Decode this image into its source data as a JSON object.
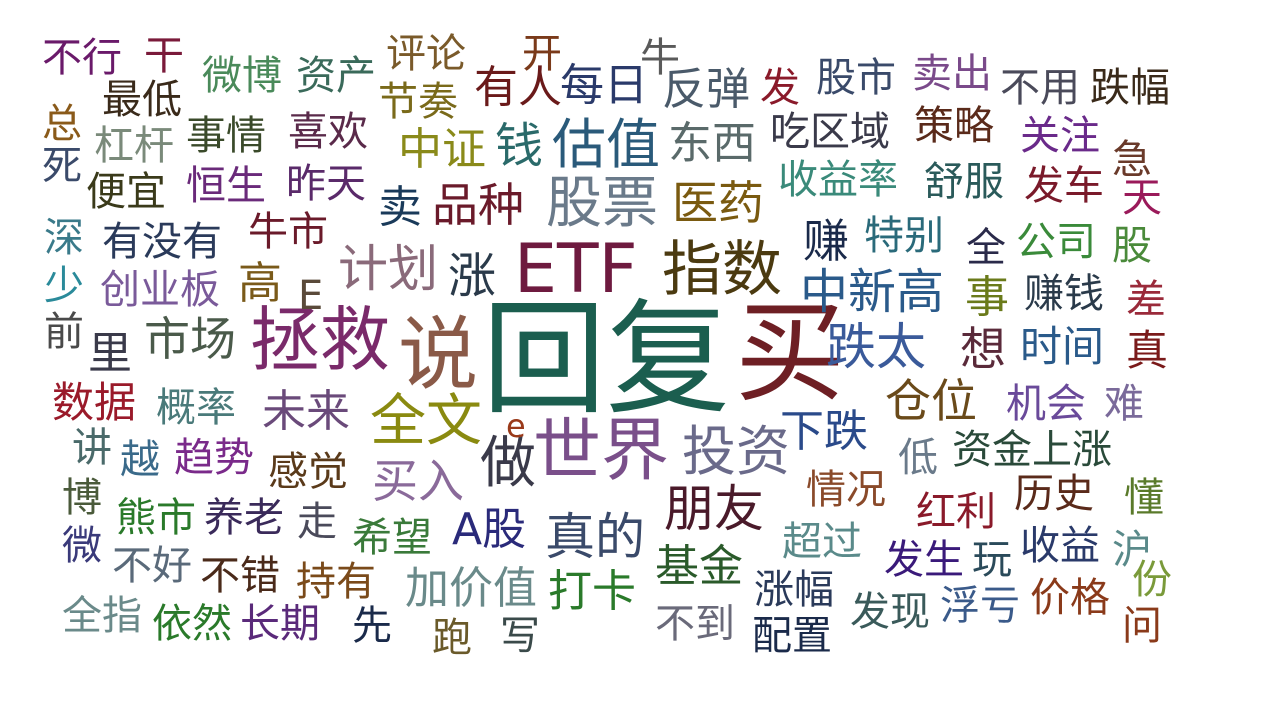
{
  "words": [
    {
      "text": "回复",
      "color": "#1b5e4f"
    },
    {
      "text": "买",
      "color": "#6e1f24"
    },
    {
      "text": "ETF",
      "color": "#6e1a3f"
    },
    {
      "text": "世界",
      "color": "#7a4f8a"
    },
    {
      "text": "说",
      "color": "#8a5a48"
    },
    {
      "text": "拯救",
      "color": "#7a2a6a"
    },
    {
      "text": "指数",
      "color": "#4b3a10"
    },
    {
      "text": "股票",
      "color": "#6a7a8a"
    },
    {
      "text": "投资",
      "color": "#6a6a8a"
    },
    {
      "text": "全文",
      "color": "#8a8a10"
    },
    {
      "text": "做",
      "color": "#3a3a4a"
    },
    {
      "text": "估值",
      "color": "#2a5a7a"
    },
    {
      "text": "计划",
      "color": "#8a6a7a"
    },
    {
      "text": "跌太",
      "color": "#3a5a9a"
    },
    {
      "text": "真的",
      "color": "#3a4a6a"
    },
    {
      "text": "朋友",
      "color": "#4a1a2a"
    },
    {
      "text": "中新高",
      "color": "#2a5a8a"
    },
    {
      "text": "品种",
      "color": "#6a1a2a"
    },
    {
      "text": "医药",
      "color": "#7a5a10"
    },
    {
      "text": "仓位",
      "color": "#6a4a1a"
    },
    {
      "text": "涨",
      "color": "#2a3a4a"
    },
    {
      "text": "市场",
      "color": "#4a5a4a"
    },
    {
      "text": "买入",
      "color": "#8a6a9a"
    },
    {
      "text": "下跌",
      "color": "#2a4a8a"
    },
    {
      "text": "A股",
      "color": "#2a2a7a"
    },
    {
      "text": "打卡",
      "color": "#2a7a2a"
    },
    {
      "text": "加价值",
      "color": "#6a8a8a"
    },
    {
      "text": "未来",
      "color": "#6a4a7a"
    },
    {
      "text": "时间",
      "color": "#2a5a8a"
    },
    {
      "text": "钱",
      "color": "#2a6a6a"
    },
    {
      "text": "每日",
      "color": "#2a3a6a"
    },
    {
      "text": "反弹",
      "color": "#4a5a6a"
    },
    {
      "text": "东西",
      "color": "#5a6a6a"
    },
    {
      "text": "赚",
      "color": "#1a2a4a"
    },
    {
      "text": "想",
      "color": "#5a2a3a"
    },
    {
      "text": "真",
      "color": "#7a1a1a"
    },
    {
      "text": "事",
      "color": "#6a7a1a"
    },
    {
      "text": "卖",
      "color": "#1a3a5a"
    },
    {
      "text": "高",
      "color": "#7a5a1a"
    },
    {
      "text": "牛市",
      "color": "#6a1a2a"
    },
    {
      "text": "有人",
      "color": "#6a1a1a"
    },
    {
      "text": "中证",
      "color": "#8a8a1a"
    },
    {
      "text": "基金",
      "color": "#2a5a2a"
    },
    {
      "text": "感觉",
      "color": "#5a3a1a"
    },
    {
      "text": "趋势",
      "color": "#7a2a8a"
    },
    {
      "text": "概率",
      "color": "#4a7a7a"
    },
    {
      "text": "数据",
      "color": "#9a1a2a"
    },
    {
      "text": "创业板",
      "color": "#7a5a9a"
    },
    {
      "text": "收益率",
      "color": "#3a8a7a"
    },
    {
      "text": "特别",
      "color": "#2a6a7a"
    },
    {
      "text": "公司",
      "color": "#3a8a3a"
    },
    {
      "text": "吃区域",
      "color": "#3a3a4a"
    },
    {
      "text": "股市",
      "color": "#3a4a6a"
    },
    {
      "text": "舒服",
      "color": "#2a5a5a"
    },
    {
      "text": "发车",
      "color": "#7a1a2a"
    },
    {
      "text": "机会",
      "color": "#6a4a9a"
    },
    {
      "text": "资金上涨",
      "color": "#2a4a3a"
    },
    {
      "text": "历史",
      "color": "#5a2a1a"
    },
    {
      "text": "收益",
      "color": "#2a3a6a"
    },
    {
      "text": "发生",
      "color": "#3a1a7a"
    },
    {
      "text": "红利",
      "color": "#8a1a2a"
    },
    {
      "text": "情况",
      "color": "#8a4a2a"
    },
    {
      "text": "超过",
      "color": "#5a8a8a"
    },
    {
      "text": "涨幅",
      "color": "#2a3a5a"
    },
    {
      "text": "发现",
      "color": "#3a5a5a"
    },
    {
      "text": "浮亏",
      "color": "#3a5a8a"
    },
    {
      "text": "价格",
      "color": "#8a3a1a"
    },
    {
      "text": "配置",
      "color": "#1a2a4a"
    },
    {
      "text": "不到",
      "color": "#6a6a7a"
    },
    {
      "text": "写",
      "color": "#3a4a4a"
    },
    {
      "text": "跑",
      "color": "#6a5a2a"
    },
    {
      "text": "持有",
      "color": "#7a4a1a"
    },
    {
      "text": "不错",
      "color": "#4a2a1a"
    },
    {
      "text": "希望",
      "color": "#3a7a3a"
    },
    {
      "text": "走",
      "color": "#4a4a5a"
    },
    {
      "text": "养老",
      "color": "#3a2a5a"
    },
    {
      "text": "熊市",
      "color": "#2a7a2a"
    },
    {
      "text": "不好",
      "color": "#5a6a7a"
    },
    {
      "text": "依然",
      "color": "#2a7a2a"
    },
    {
      "text": "长期",
      "color": "#5a2a7a"
    },
    {
      "text": "先",
      "color": "#1a2a4a"
    },
    {
      "text": "全指",
      "color": "#6a8a8a"
    },
    {
      "text": "微",
      "color": "#3a3a7a"
    },
    {
      "text": "博",
      "color": "#4a5a3a"
    },
    {
      "text": "越",
      "color": "#3a6a8a"
    },
    {
      "text": "讲",
      "color": "#4a6a6a"
    },
    {
      "text": "里",
      "color": "#3a3a4a"
    },
    {
      "text": "前",
      "color": "#4a4a4a"
    },
    {
      "text": "少",
      "color": "#2a8a9a"
    },
    {
      "text": "深",
      "color": "#3a7a8a"
    },
    {
      "text": "有没有",
      "color": "#2a3a5a"
    },
    {
      "text": "便宜",
      "color": "#3a3a1a"
    },
    {
      "text": "恒生",
      "color": "#6a2a7a"
    },
    {
      "text": "昨天",
      "color": "#5a2a6a"
    },
    {
      "text": "杠杆",
      "color": "#7a8a7a"
    },
    {
      "text": "事情",
      "color": "#3a4a2a"
    },
    {
      "text": "喜欢",
      "color": "#5a2a4a"
    },
    {
      "text": "最低",
      "color": "#3a2a1a"
    },
    {
      "text": "微博",
      "color": "#4a8a5a"
    },
    {
      "text": "资产",
      "color": "#3a6a5a"
    },
    {
      "text": "评论",
      "color": "#7a5a2a"
    },
    {
      "text": "节奏",
      "color": "#7a6a1a"
    },
    {
      "text": "不行",
      "color": "#6a1a6a"
    },
    {
      "text": "干",
      "color": "#7a1a3a"
    },
    {
      "text": "开",
      "color": "#7a3a1a"
    },
    {
      "text": "牛",
      "color": "#5a5a5a"
    },
    {
      "text": "发",
      "color": "#8a1a2a"
    },
    {
      "text": "卖出",
      "color": "#7a4a8a"
    },
    {
      "text": "不用",
      "color": "#4a4a5a"
    },
    {
      "text": "跌幅",
      "color": "#3a2a1a"
    },
    {
      "text": "策略",
      "color": "#5a2a1a"
    },
    {
      "text": "关注",
      "color": "#6a2a8a"
    },
    {
      "text": "急",
      "color": "#6a3a2a"
    },
    {
      "text": "天",
      "color": "#9a1a5a"
    },
    {
      "text": "全",
      "color": "#2a2a4a"
    },
    {
      "text": "股",
      "color": "#4a8a3a"
    },
    {
      "text": "赚钱",
      "color": "#2a3a4a"
    },
    {
      "text": "差",
      "color": "#9a2a3a"
    },
    {
      "text": "难",
      "color": "#7a6a9a"
    },
    {
      "text": "低",
      "color": "#6a7a8a"
    },
    {
      "text": "懂",
      "color": "#5a7a2a"
    },
    {
      "text": "玩",
      "color": "#2a4a5a"
    },
    {
      "text": "沪",
      "color": "#5a8a8a"
    },
    {
      "text": "份",
      "color": "#7a9a3a"
    },
    {
      "text": "问",
      "color": "#8a3a1a"
    },
    {
      "text": "总",
      "color": "#8a5a1a"
    },
    {
      "text": "死",
      "color": "#3a4a6a"
    },
    {
      "text": "E",
      "color": "#5a4a3a"
    },
    {
      "text": "e",
      "color": "#9a3a1a"
    }
  ]
}
